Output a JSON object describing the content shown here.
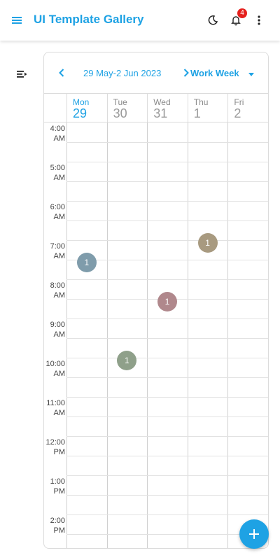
{
  "app": {
    "title": "UI Template Gallery",
    "accent": "#1ea2e4",
    "notification_count": "4",
    "icons": [
      "menu-icon",
      "moon-icon",
      "bell-icon",
      "more-vert-icon",
      "sidebar-toggle-icon"
    ]
  },
  "scheduler": {
    "date_range": "29 May-2 Jun 2023",
    "view": "Work Week",
    "days": [
      {
        "name": "Mon",
        "num": "29",
        "today": true
      },
      {
        "name": "Tue",
        "num": "30",
        "today": false
      },
      {
        "name": "Wed",
        "num": "31",
        "today": false
      },
      {
        "name": "Thu",
        "num": "1",
        "today": false
      },
      {
        "name": "Fri",
        "num": "2",
        "today": false
      }
    ],
    "times": [
      [
        "4:00",
        "AM"
      ],
      [
        "5:00",
        "AM"
      ],
      [
        "6:00",
        "AM"
      ],
      [
        "7:00",
        "AM"
      ],
      [
        "8:00",
        "AM"
      ],
      [
        "9:00",
        "AM"
      ],
      [
        "10:00",
        "AM"
      ],
      [
        "11:00",
        "AM"
      ],
      [
        "12:00",
        "PM"
      ],
      [
        "1:00",
        "PM"
      ],
      [
        "2:00",
        "PM"
      ]
    ],
    "events": [
      {
        "day": 0,
        "start": "7:30 AM",
        "label": "1",
        "color": "#7f9cab"
      },
      {
        "day": 1,
        "start": "10:00 AM",
        "label": "1",
        "color": "#8fa08a"
      },
      {
        "day": 2,
        "start": "8:30 AM",
        "label": "1",
        "color": "#b0888c"
      },
      {
        "day": 3,
        "start": "7:00 AM",
        "label": "1",
        "color": "#a89a80"
      }
    ]
  },
  "fab": {
    "icon": "plus-icon"
  }
}
